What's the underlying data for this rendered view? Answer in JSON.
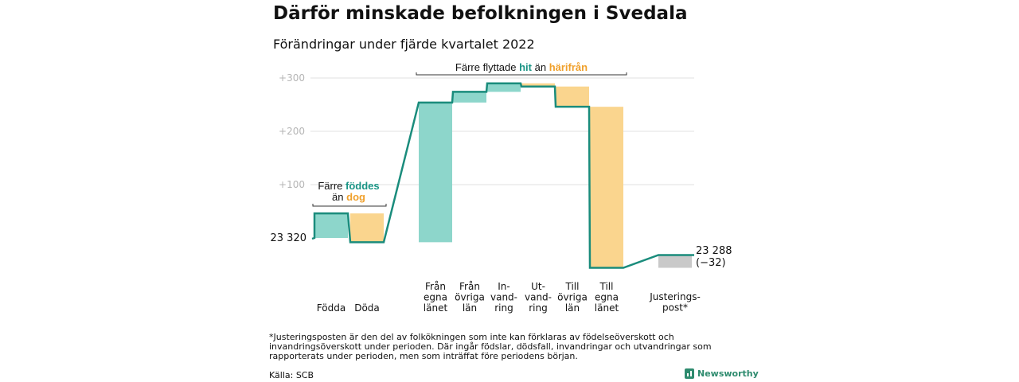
{
  "title": "Därför minskade befolkningen i Svedala",
  "subtitle": "Förändringar under fjärde kvartalet 2022",
  "chart_data": {
    "type": "waterfall",
    "start_value": 23320,
    "start_label": "23 320",
    "end_value": 23288,
    "end_label": "23 288",
    "end_change_label": "(−32)",
    "y_ticks": [
      "+100",
      "+200",
      "+300"
    ],
    "colors": {
      "this_period": "#8dd6cb",
      "same_period_last_year": "#fad58e",
      "adjustment": "#c9c9c9",
      "line": "#1a8c7c",
      "highlight_green": "#1a9485",
      "highlight_orange": "#f0a02b"
    },
    "annotations": {
      "born": {
        "pre": "Färre ",
        "hl1": "föddes",
        "line2_pre": "än ",
        "hl2": "dog"
      },
      "moved": {
        "pre": "Färre flyttade ",
        "hl1": "hit",
        "mid": " än ",
        "hl2": "härifrån"
      }
    },
    "categories": [
      [
        "Födda"
      ],
      [
        "Döda"
      ],
      [
        "Från",
        "egna",
        "länet"
      ],
      [
        "Från",
        "övriga",
        "län"
      ],
      [
        "In-",
        "vand-",
        "ring"
      ],
      [
        "Ut-",
        "vand-",
        "ring"
      ],
      [
        "Till",
        "övriga",
        "län"
      ],
      [
        "Till",
        "egna",
        "länet"
      ],
      [
        "Justerings-",
        "post*"
      ]
    ],
    "steps": [
      {
        "category": "Födda",
        "value": 46
      },
      {
        "category": "Döda",
        "value": -54
      },
      {
        "category": "Från egna länet",
        "value": 262
      },
      {
        "category": "Från övriga län",
        "value": 20
      },
      {
        "category": "Invandring",
        "value": 16
      },
      {
        "category": "Utvandring",
        "value": -6
      },
      {
        "category": "Till övriga län",
        "value": -38
      },
      {
        "category": "Till egna länet",
        "value": -302
      },
      {
        "category": "Justeringspost*",
        "value": 24
      }
    ]
  },
  "footnote": "*Justeringsposten är den del av folkökningen som inte kan förklaras av födelseöverskott och invandringsöverskott under perioden. Där ingår födslar, dödsfall, invandringar och utvandringar som rapporterats under perioden, men som inträffat före periodens början.",
  "source": "Källa: SCB",
  "brand": "Newsworthy"
}
